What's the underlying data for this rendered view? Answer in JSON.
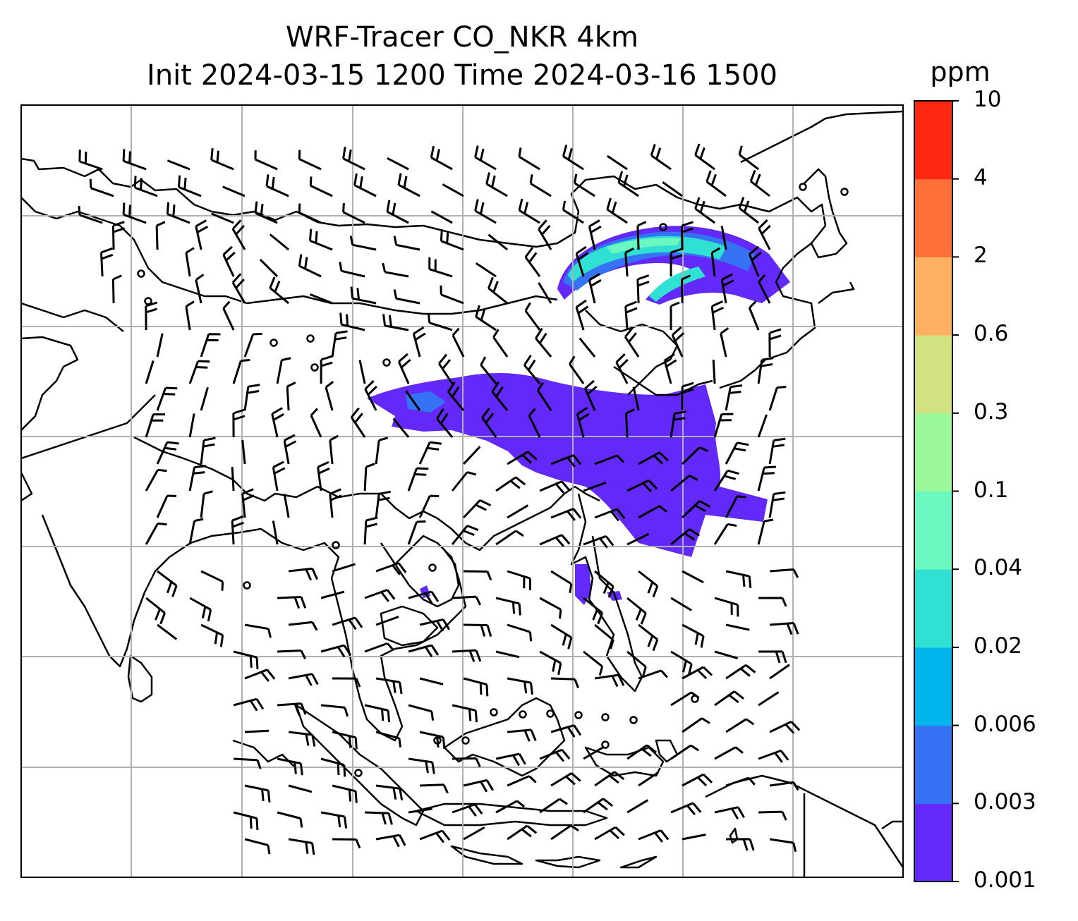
{
  "title": {
    "line1": "WRF-Tracer CO_NKR 4km",
    "line2": "Init 2024-03-15 1200 Time 2024-03-16 1500"
  },
  "colorbar": {
    "unit": "ppm",
    "levels": [
      "0.001",
      "0.003",
      "0.006",
      "0.02",
      "0.04",
      "0.1",
      "0.3",
      "0.6",
      "2",
      "4",
      "10"
    ],
    "colors": [
      "#6229f8",
      "#3673f4",
      "#00b4ec",
      "#30e0d2",
      "#6af8c0",
      "#9af89a",
      "#d0e282",
      "#ffb060",
      "#ff7038",
      "#ff2810"
    ]
  },
  "map": {
    "gridlines": true,
    "wind_barbs": true,
    "plume_color_levels": {
      "northeast": [
        "0.003",
        "0.006",
        "0.02",
        "0.04"
      ],
      "central": [
        "0.001",
        "0.003"
      ]
    }
  }
}
